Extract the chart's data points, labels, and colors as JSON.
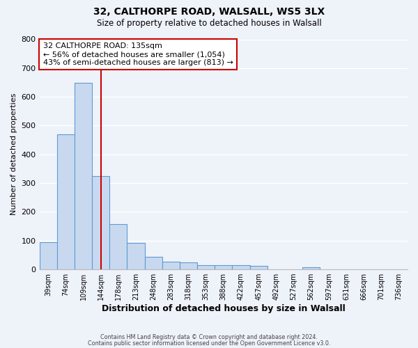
{
  "title": "32, CALTHORPE ROAD, WALSALL, WS5 3LX",
  "subtitle": "Size of property relative to detached houses in Walsall",
  "xlabel": "Distribution of detached houses by size in Walsall",
  "ylabel": "Number of detached properties",
  "bar_labels": [
    "39sqm",
    "74sqm",
    "109sqm",
    "144sqm",
    "178sqm",
    "213sqm",
    "248sqm",
    "283sqm",
    "318sqm",
    "353sqm",
    "388sqm",
    "422sqm",
    "457sqm",
    "492sqm",
    "527sqm",
    "562sqm",
    "597sqm",
    "631sqm",
    "666sqm",
    "701sqm",
    "736sqm"
  ],
  "bar_values": [
    95,
    470,
    648,
    325,
    158,
    92,
    43,
    28,
    25,
    15,
    14,
    15,
    12,
    0,
    0,
    8,
    0,
    0,
    0,
    0,
    0
  ],
  "bar_color": "#c8d9ef",
  "bar_edge_color": "#5b9bd5",
  "marker_label": "32 CALTHORPE ROAD: 135sqm",
  "annotation_line1": "← 56% of detached houses are smaller (1,054)",
  "annotation_line2": "43% of semi-detached houses are larger (813) →",
  "vline_color": "#cc0000",
  "vline_x": 3.0,
  "ylim": [
    0,
    800
  ],
  "yticks": [
    0,
    100,
    200,
    300,
    400,
    500,
    600,
    700,
    800
  ],
  "footer1": "Contains HM Land Registry data © Crown copyright and database right 2024.",
  "footer2": "Contains public sector information licensed under the Open Government Licence v3.0.",
  "bg_color": "#eef2f9",
  "plot_bg_color": "#eef2f9",
  "grid_color": "#ffffff",
  "annotation_fontsize": 8.0,
  "title_fontsize": 10,
  "subtitle_fontsize": 8.5
}
